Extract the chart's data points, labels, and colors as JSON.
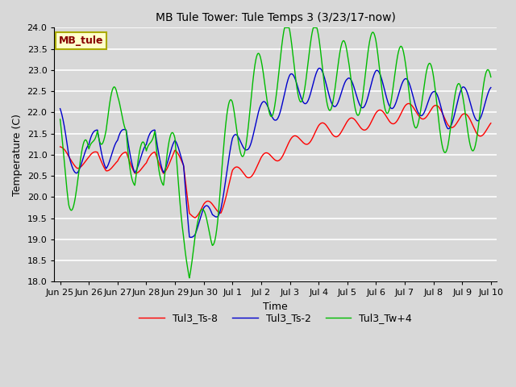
{
  "title": "MB Tule Tower: Tule Temps 3 (3/23/17-now)",
  "xlabel": "Time",
  "ylabel": "Temperature (C)",
  "ylim": [
    18.0,
    24.0
  ],
  "yticks": [
    18.0,
    18.5,
    19.0,
    19.5,
    20.0,
    20.5,
    21.0,
    21.5,
    22.0,
    22.5,
    23.0,
    23.5,
    24.0
  ],
  "bg_color": "#d8d8d8",
  "line_colors": {
    "Tul3_Ts-8": "#ff0000",
    "Tul3_Ts-2": "#0000cc",
    "Tul3_Tw+4": "#00bb00"
  },
  "legend_label": "MB_tule",
  "legend_box_color": "#ffffcc",
  "legend_box_edge": "#aaaa00",
  "legend_text_color": "#880000",
  "x_tick_labels": [
    "Jun 25",
    "Jun 26",
    "Jun 27",
    "Jun 28",
    "Jun 29",
    "Jun 30",
    "Jul 1",
    "Jul 2",
    "Jul 3",
    "Jul 4",
    "Jul 5",
    "Jul 6",
    "Jul 7",
    "Jul 8",
    "Jul 9",
    "Jul 10"
  ],
  "figsize": [
    6.4,
    4.8
  ],
  "dpi": 100
}
